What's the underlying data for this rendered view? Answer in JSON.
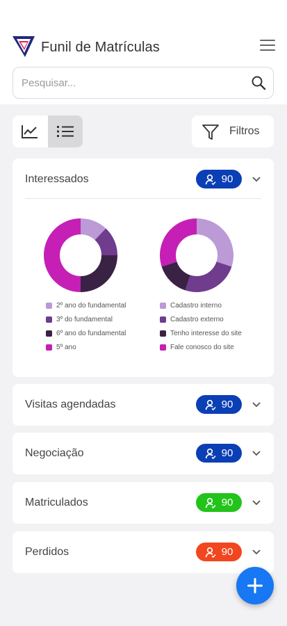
{
  "header": {
    "title": "Funil de Matrículas",
    "logo_icon": "brand-logo",
    "menu_icon": "hamburger-icon"
  },
  "search": {
    "placeholder": "Pesquisar...",
    "icon": "search-icon"
  },
  "view_toggle": {
    "options": [
      "chart-view-icon",
      "list-view-icon"
    ],
    "active": "list-view-icon"
  },
  "filter": {
    "label": "Filtros",
    "icon": "funnel-icon"
  },
  "stages": [
    {
      "title": "Interessados",
      "count": "90",
      "badge_color": "#0b3fb5",
      "expanded": true,
      "charts": [
        {
          "type": "pie",
          "legend": [
            {
              "label": "2º ano do fundamental",
              "color": "#bb9ad6",
              "value": 12
            },
            {
              "label": "3º do fundamental",
              "color": "#6f3c8e",
              "value": 13
            },
            {
              "label": "6º ano do fundamental",
              "color": "#3a2244",
              "value": 25
            },
            {
              "label": "5º ano",
              "color": "#c51fb5",
              "value": 50
            }
          ]
        },
        {
          "type": "pie",
          "legend": [
            {
              "label": "Cadastro interno",
              "color": "#bb9ad6",
              "value": 30
            },
            {
              "label": "Cadastro externo",
              "color": "#6f3c8e",
              "value": 25
            },
            {
              "label": "Tenho interesse do site",
              "color": "#3a2244",
              "value": 15
            },
            {
              "label": "Fale conosco do site",
              "color": "#c51fb5",
              "value": 30
            }
          ]
        }
      ]
    },
    {
      "title": "Visitas agendadas",
      "count": "90",
      "badge_color": "#0b3fb5",
      "expanded": false
    },
    {
      "title": "Negociação",
      "count": "90",
      "badge_color": "#0b3fb5",
      "expanded": false
    },
    {
      "title": "Matriculados",
      "count": "90",
      "badge_color": "#22c31a",
      "expanded": false
    },
    {
      "title": "Perdidos",
      "count": "90",
      "badge_color": "#f2461f",
      "expanded": false
    }
  ],
  "fab": {
    "icon": "plus-icon"
  },
  "chart_data": [
    {
      "type": "pie",
      "categories": [
        "2º ano do fundamental",
        "3º do fundamental",
        "6º ano do fundamental",
        "5º ano"
      ],
      "values": [
        12,
        13,
        25,
        50
      ]
    },
    {
      "type": "pie",
      "categories": [
        "Cadastro interno",
        "Cadastro externo",
        "Tenho interesse do site",
        "Fale conosco do site"
      ],
      "values": [
        30,
        25,
        15,
        30
      ]
    }
  ]
}
